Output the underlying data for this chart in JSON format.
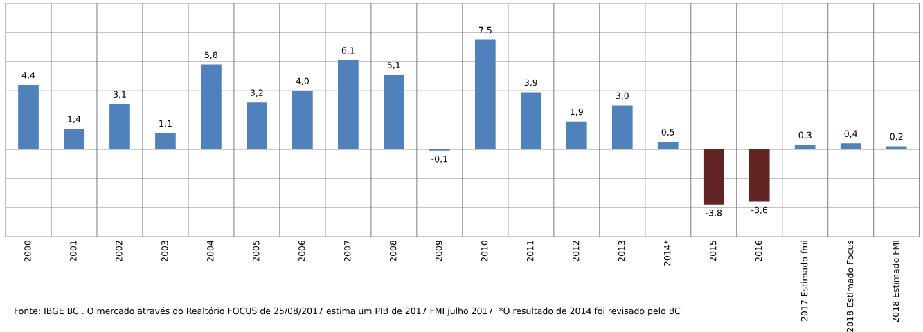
{
  "chart_data": {
    "type": "bar",
    "categories": [
      "2000",
      "2001",
      "2002",
      "2003",
      "2004",
      "2005",
      "2006",
      "2007",
      "2008",
      "2009",
      "2010",
      "2011",
      "2012",
      "2013",
      "2014*",
      "2015",
      "2016",
      "2017 Estimado fmi",
      "2018 Estimado Focus",
      "2018 Estimado FMI"
    ],
    "values": [
      4.4,
      1.4,
      3.1,
      1.1,
      5.8,
      3.2,
      4.0,
      6.1,
      5.1,
      -0.1,
      7.5,
      3.9,
      1.9,
      3.0,
      0.5,
      -3.8,
      -3.6,
      0.3,
      0.4,
      0.2
    ],
    "value_labels": [
      "4,4",
      "1,4",
      "3,1",
      "1,1",
      "5,8",
      "3,2",
      "4,0",
      "6,1",
      "5,1",
      "-0,1",
      "7,5",
      "3,9",
      "1,9",
      "3,0",
      "0,5",
      "-3,8",
      "-3,6",
      "0,3",
      "0,4",
      "0,2"
    ],
    "colors": [
      "#4f81bd",
      "#4f81bd",
      "#4f81bd",
      "#4f81bd",
      "#4f81bd",
      "#4f81bd",
      "#4f81bd",
      "#4f81bd",
      "#4f81bd",
      "#4f81bd",
      "#4f81bd",
      "#4f81bd",
      "#4f81bd",
      "#4f81bd",
      "#4f81bd",
      "#632523",
      "#632523",
      "#4f81bd",
      "#4f81bd",
      "#4f81bd"
    ],
    "ylim": [
      -6,
      10
    ],
    "yticks": [
      {
        "value": -6,
        "label": null
      },
      {
        "value": -4,
        "label": null
      },
      {
        "value": -2,
        "label": null
      },
      {
        "value": 0,
        "label": null
      },
      {
        "value": 2,
        "label": null
      },
      {
        "value": 4,
        "label": null
      },
      {
        "value": 6,
        "label": null
      },
      {
        "value": 8,
        "label": null
      },
      {
        "value": 10,
        "label": null
      }
    ],
    "tick_labels": "x",
    "grid": true,
    "annotations": [
      "Fonte: IBGE BC . O mercado através do Realtório FOCUS de 25/08/2017 estima um PIB de 2017 FMI julho 2017  *O resultado de 2014 foi revisado pelo BC"
    ]
  }
}
